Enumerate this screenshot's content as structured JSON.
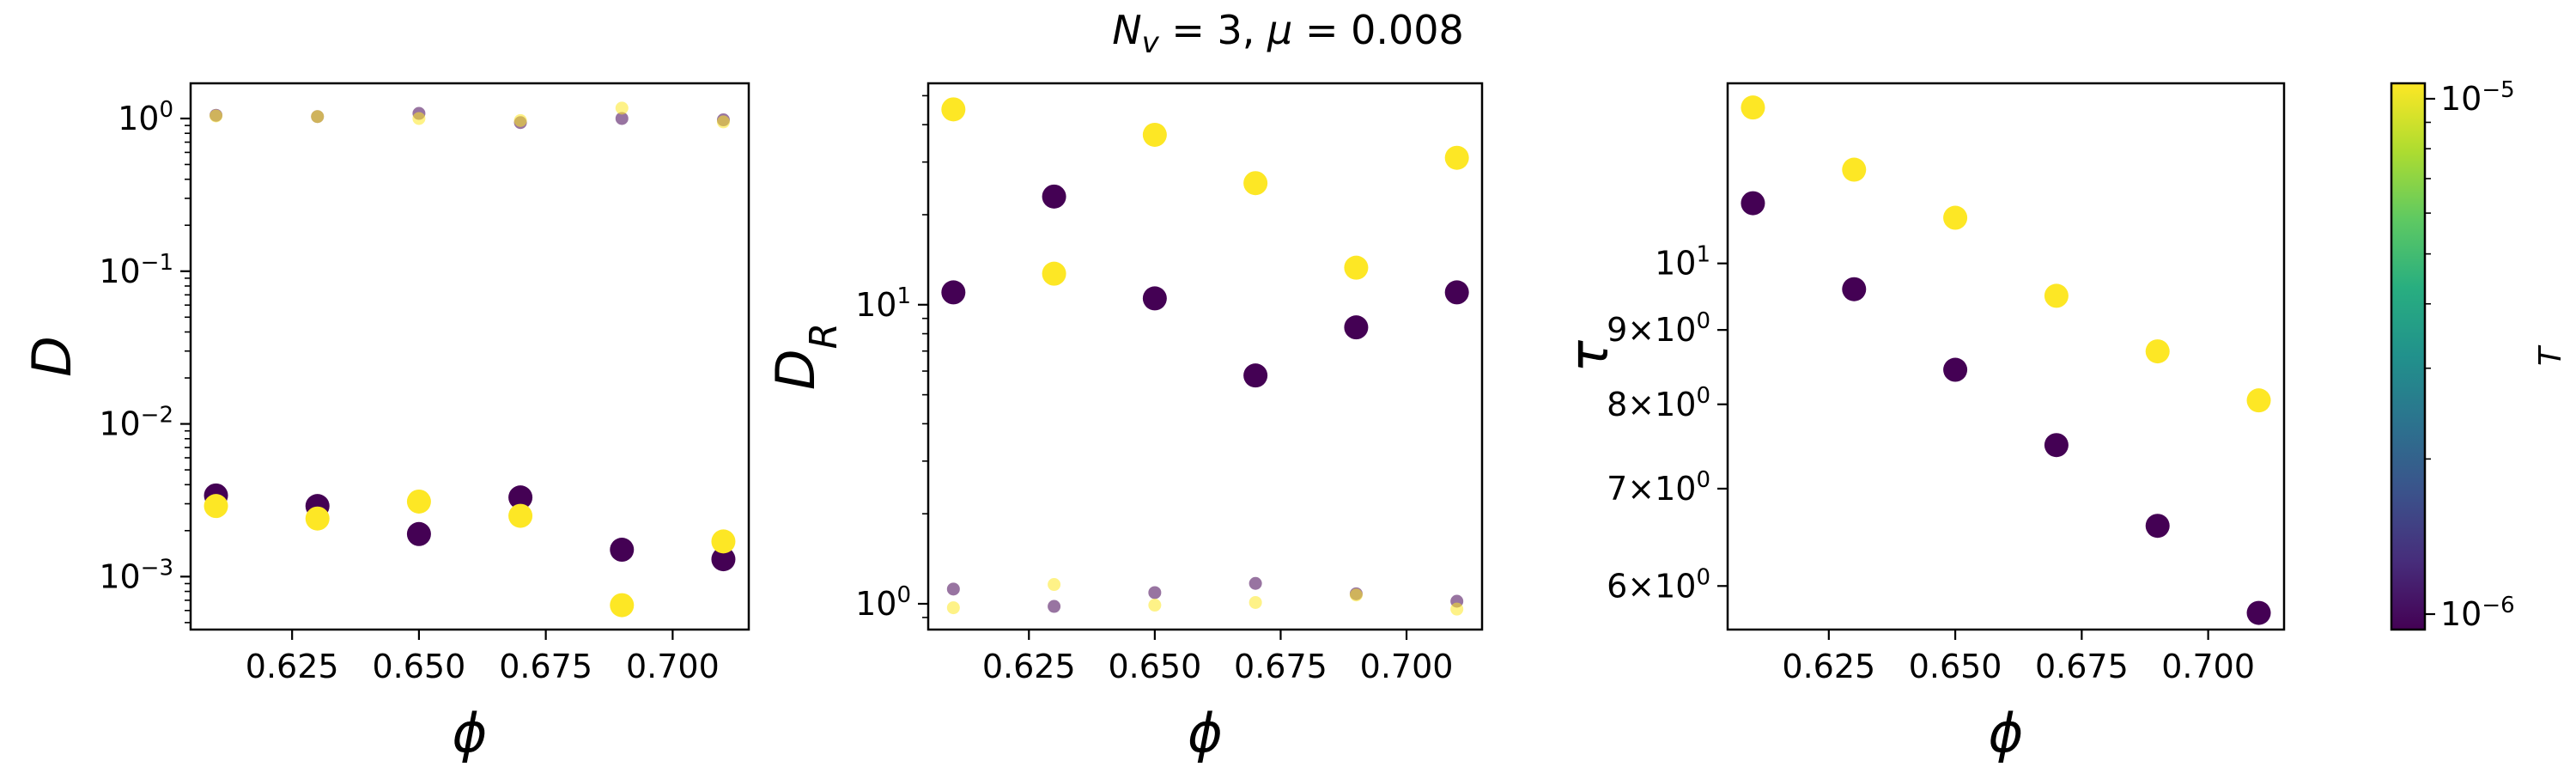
{
  "title": "N_v = 3, μ = 0.008",
  "title_parts": {
    "sym": "N",
    "sub": "v",
    "eq1": " = 3, ",
    "mu": "μ",
    "eq2": " = 0.008"
  },
  "colorbar": {
    "label": "T",
    "scale": "log",
    "range": [
      1e-06,
      1e-05
    ],
    "colormap": "viridis",
    "colors": [
      "#440154",
      "#472d7b",
      "#3b528b",
      "#2c728e",
      "#21918c",
      "#28ae80",
      "#5ec962",
      "#addc30",
      "#fde725"
    ],
    "ticks": [
      {
        "value": 1e-06,
        "base": "10",
        "exp": "−6"
      },
      {
        "value": 1e-05,
        "base": "10",
        "exp": "−5"
      }
    ]
  },
  "series_colors": {
    "low_T": "#440154",
    "high_T": "#fde725"
  },
  "chart_data": [
    {
      "type": "scatter",
      "xlabel": "ϕ",
      "ylabel": "D",
      "yscale": "log",
      "xlim": [
        0.605,
        0.715
      ],
      "ylim": [
        0.00045,
        1.7
      ],
      "xticks": [
        0.625,
        0.65,
        0.675,
        0.7
      ],
      "xtick_labels": [
        "0.625",
        "0.650",
        "0.675",
        "0.700"
      ],
      "yticks": [
        {
          "value": 1,
          "base": "10",
          "exp": "0"
        },
        {
          "value": 0.1,
          "base": "10",
          "exp": "−1"
        },
        {
          "value": 0.01,
          "base": "10",
          "exp": "−2"
        },
        {
          "value": 0.001,
          "base": "10",
          "exp": "−3"
        }
      ],
      "series": [
        {
          "color_key": "low_T",
          "marker": "large",
          "x": [
            0.61,
            0.63,
            0.65,
            0.67,
            0.69,
            0.71
          ],
          "y": [
            0.0034,
            0.0029,
            0.0019,
            0.0033,
            0.0015,
            0.0013
          ]
        },
        {
          "color_key": "high_T",
          "marker": "large",
          "x": [
            0.61,
            0.63,
            0.65,
            0.67,
            0.69,
            0.71
          ],
          "y": [
            0.0029,
            0.0024,
            0.0031,
            0.0025,
            0.00065,
            0.0017
          ]
        },
        {
          "color_key": "low_T",
          "marker": "small",
          "x": [
            0.61,
            0.63,
            0.65,
            0.67,
            0.69,
            0.71
          ],
          "y": [
            1.05,
            1.03,
            1.08,
            0.94,
            1.0,
            0.98
          ]
        },
        {
          "color_key": "high_T",
          "marker": "small",
          "x": [
            0.61,
            0.63,
            0.65,
            0.67,
            0.69,
            0.71
          ],
          "y": [
            1.04,
            1.03,
            1.0,
            0.97,
            1.17,
            0.95
          ]
        }
      ]
    },
    {
      "type": "scatter",
      "xlabel": "ϕ",
      "ylabel": "D",
      "ylabel_sub": "R",
      "yscale": "log",
      "xlim": [
        0.605,
        0.715
      ],
      "ylim": [
        0.82,
        55
      ],
      "xticks": [
        0.625,
        0.65,
        0.675,
        0.7
      ],
      "xtick_labels": [
        "0.625",
        "0.650",
        "0.675",
        "0.700"
      ],
      "yticks": [
        {
          "value": 1,
          "base": "10",
          "exp": "0"
        },
        {
          "value": 10,
          "base": "10",
          "exp": "1"
        }
      ],
      "series": [
        {
          "color_key": "low_T",
          "marker": "large",
          "x": [
            0.61,
            0.63,
            0.65,
            0.67,
            0.69,
            0.71
          ],
          "y": [
            11.0,
            23.0,
            10.5,
            5.8,
            8.4,
            11.0
          ]
        },
        {
          "color_key": "high_T",
          "marker": "large",
          "x": [
            0.61,
            0.63,
            0.65,
            0.67,
            0.69,
            0.71
          ],
          "y": [
            45.0,
            12.7,
            37.0,
            25.5,
            13.3,
            31.0
          ]
        },
        {
          "color_key": "low_T",
          "marker": "small",
          "x": [
            0.61,
            0.63,
            0.65,
            0.67,
            0.69,
            0.71
          ],
          "y": [
            1.12,
            0.98,
            1.09,
            1.17,
            1.08,
            1.02
          ]
        },
        {
          "color_key": "high_T",
          "marker": "small",
          "x": [
            0.61,
            0.63,
            0.65,
            0.67,
            0.69,
            0.71
          ],
          "y": [
            0.97,
            1.16,
            0.99,
            1.01,
            1.07,
            0.96
          ]
        }
      ]
    },
    {
      "type": "scatter",
      "xlabel": "ϕ",
      "ylabel": "τ",
      "yscale": "log",
      "xlim": [
        0.605,
        0.715
      ],
      "ylim": [
        5.6,
        13.3
      ],
      "xticks": [
        0.625,
        0.65,
        0.675,
        0.7
      ],
      "xtick_labels": [
        "0.625",
        "0.650",
        "0.675",
        "0.700"
      ],
      "yticks": [
        {
          "value": 6,
          "mant": "6",
          "times": "×",
          "base": "10",
          "exp": "0"
        },
        {
          "value": 7,
          "mant": "7",
          "times": "×",
          "base": "10",
          "exp": "0"
        },
        {
          "value": 8,
          "mant": "8",
          "times": "×",
          "base": "10",
          "exp": "0"
        },
        {
          "value": 9,
          "mant": "9",
          "times": "×",
          "base": "10",
          "exp": "0"
        },
        {
          "value": 10,
          "base": "10",
          "exp": "1"
        }
      ],
      "series": [
        {
          "color_key": "low_T",
          "marker": "large",
          "x": [
            0.61,
            0.63,
            0.65,
            0.67,
            0.69,
            0.71
          ],
          "y": [
            11.0,
            9.6,
            8.45,
            7.5,
            6.6,
            5.75
          ]
        },
        {
          "color_key": "high_T",
          "marker": "large",
          "x": [
            0.61,
            0.63,
            0.65,
            0.67,
            0.69,
            0.71
          ],
          "y": [
            12.8,
            11.6,
            10.75,
            9.5,
            8.7,
            8.05
          ]
        }
      ]
    }
  ]
}
